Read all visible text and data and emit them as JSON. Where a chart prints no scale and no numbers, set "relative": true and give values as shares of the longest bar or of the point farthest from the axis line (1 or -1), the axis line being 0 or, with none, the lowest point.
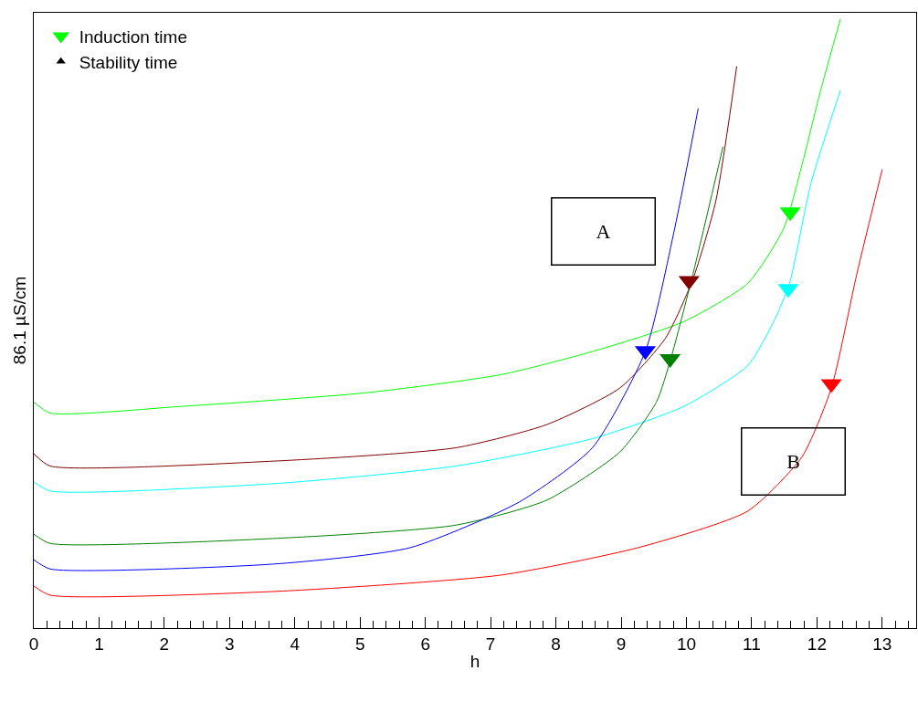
{
  "chart_data": {
    "type": "line",
    "relative": true,
    "xlabel": "h",
    "ylabel": "86.1 µS/cm",
    "xlim": [
      0,
      13.52
    ],
    "xticks": [
      0,
      1,
      2,
      3,
      4,
      5,
      6,
      7,
      8,
      9,
      10,
      11,
      12,
      13
    ],
    "legend": "top left",
    "marker": "none",
    "line_style": "solid",
    "annotations": [
      "A",
      "B"
    ],
    "series": [
      {
        "color": "#00ff00",
        "x": [
          0,
          0.25,
          2.28,
          5.07,
          7.16,
          8.56,
          9.96,
          10.94,
          11.49,
          11.77,
          12.05,
          12.36
        ],
        "values": [
          0.371,
          0.353,
          0.364,
          0.386,
          0.416,
          0.454,
          0.503,
          0.566,
          0.656,
          0.76,
          0.88,
          1.0
        ]
      },
      {
        "color": "#800000",
        "x": [
          0,
          0.25,
          3.67,
          6.47,
          7.86,
          8.98,
          9.68,
          10.1,
          10.45,
          10.77
        ],
        "values": [
          0.286,
          0.266,
          0.274,
          0.296,
          0.334,
          0.394,
          0.476,
          0.573,
          0.701,
          0.922
        ]
      },
      {
        "color": "#00ffff",
        "x": [
          0,
          0.25,
          3.67,
          6.47,
          8.56,
          9.96,
          10.94,
          11.35,
          11.58,
          11.91,
          12.36
        ],
        "values": [
          0.24,
          0.225,
          0.237,
          0.266,
          0.311,
          0.364,
          0.431,
          0.506,
          0.566,
          0.731,
          0.883
        ]
      },
      {
        "color": "#008000",
        "x": [
          0,
          0.25,
          3.67,
          6.47,
          7.86,
          8.98,
          9.54,
          9.76,
          10.1,
          10.56
        ],
        "values": [
          0.154,
          0.139,
          0.147,
          0.169,
          0.21,
          0.289,
          0.371,
          0.442,
          0.581,
          0.79
        ]
      },
      {
        "color": "#0000ff",
        "x": [
          0,
          0.25,
          3.67,
          5.77,
          7.44,
          8.56,
          9.37,
          9.82,
          10.18
        ],
        "values": [
          0.112,
          0.097,
          0.105,
          0.132,
          0.207,
          0.296,
          0.454,
          0.656,
          0.853
        ]
      },
      {
        "color": "#ff0000",
        "x": [
          0,
          0.25,
          3.67,
          7.16,
          9.26,
          10.94,
          11.77,
          12.22,
          12.61,
          13.0
        ],
        "values": [
          0.069,
          0.054,
          0.06,
          0.087,
          0.132,
          0.192,
          0.281,
          0.394,
          0.581,
          0.753
        ]
      },
      {
        "type": "scatter",
        "name": "Induction time",
        "marker": "triangle-down",
        "color": "#000000",
        "colors": [
          "#00ff00",
          "#800000",
          "#00ffff",
          "#008000",
          "#0000ff",
          "#ff0000"
        ],
        "x": [
          11.59,
          10.04,
          11.56,
          9.75,
          9.37,
          12.22
        ],
        "values": [
          0.683,
          0.57,
          0.557,
          0.442,
          0.455,
          0.401
        ]
      },
      {
        "type": "scatter",
        "name": "Stability time",
        "marker": "triangle-up",
        "color": "#000000"
      }
    ]
  }
}
